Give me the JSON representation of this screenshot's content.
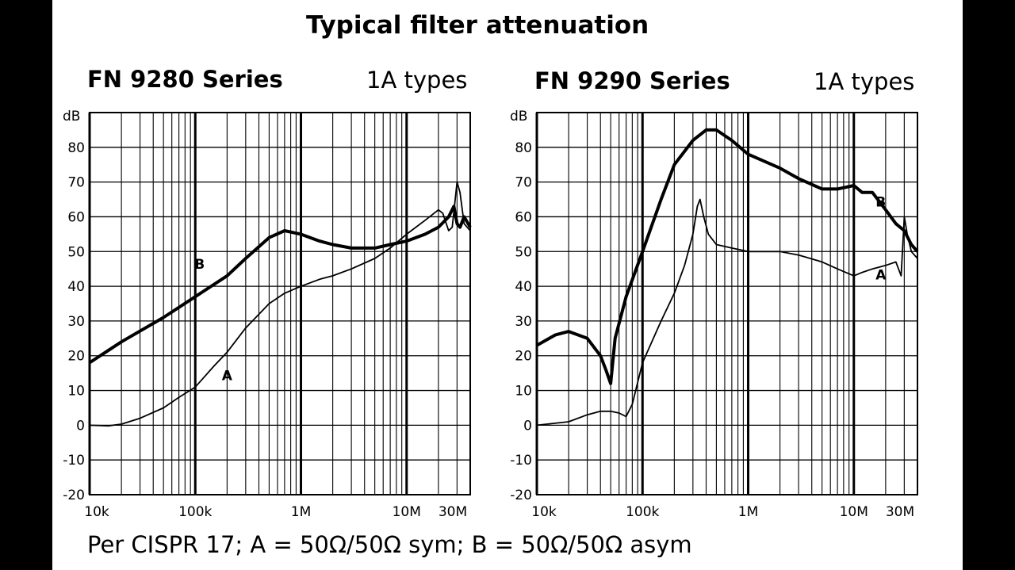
{
  "page": {
    "title": "Typical filter attenuation",
    "footnote": "Per CISPR 17; A = 50Ω/50Ω sym; B = 50Ω/50Ω asym"
  },
  "colors": {
    "background": "#000000",
    "panel": "#ffffff",
    "ink": "#000000"
  },
  "chart_data": [
    {
      "type": "line",
      "title": "FN 9280 Series",
      "subtitle": "1A types",
      "ylabel": "dB",
      "xlabel": "",
      "x_scale": "log",
      "xlim": [
        10000,
        40000000
      ],
      "ylim": [
        -20,
        90
      ],
      "grid": true,
      "x_ticks": [
        10000,
        100000,
        1000000,
        10000000,
        30000000
      ],
      "x_tick_labels": [
        "10k",
        "100k",
        "1M",
        "10M",
        "30M"
      ],
      "y_ticks": [
        -20,
        -10,
        0,
        10,
        20,
        30,
        40,
        50,
        60,
        70,
        80
      ],
      "y_tick_labels": [
        "-20",
        "-10",
        "0",
        "10",
        "20",
        "30",
        "40",
        "50",
        "60",
        "70",
        "80"
      ],
      "series": [
        {
          "name": "A",
          "label_point": [
            200000,
            13
          ],
          "points": [
            [
              10000,
              0
            ],
            [
              15000,
              -0.2
            ],
            [
              20000,
              0.3
            ],
            [
              30000,
              2
            ],
            [
              50000,
              5
            ],
            [
              70000,
              8
            ],
            [
              100000,
              11
            ],
            [
              150000,
              17
            ],
            [
              200000,
              21
            ],
            [
              300000,
              28
            ],
            [
              500000,
              35
            ],
            [
              700000,
              38
            ],
            [
              1000000,
              40
            ],
            [
              1500000,
              42
            ],
            [
              2000000,
              43
            ],
            [
              3000000,
              45
            ],
            [
              5000000,
              48
            ],
            [
              7000000,
              51
            ],
            [
              10000000,
              55
            ],
            [
              15000000,
              59
            ],
            [
              20000000,
              62
            ],
            [
              22000000,
              61
            ],
            [
              25000000,
              56
            ],
            [
              27000000,
              57
            ],
            [
              30000000,
              70
            ],
            [
              32000000,
              67
            ],
            [
              35000000,
              58
            ],
            [
              40000000,
              56
            ]
          ]
        },
        {
          "name": "B",
          "label_point": [
            110000,
            45
          ],
          "points": [
            [
              10000,
              18
            ],
            [
              20000,
              24
            ],
            [
              50000,
              31
            ],
            [
              100000,
              37
            ],
            [
              200000,
              43
            ],
            [
              300000,
              48
            ],
            [
              500000,
              54
            ],
            [
              700000,
              56
            ],
            [
              1000000,
              55
            ],
            [
              1500000,
              53
            ],
            [
              2000000,
              52
            ],
            [
              3000000,
              51
            ],
            [
              5000000,
              51
            ],
            [
              7000000,
              52
            ],
            [
              10000000,
              53
            ],
            [
              15000000,
              55
            ],
            [
              20000000,
              57
            ],
            [
              25000000,
              60
            ],
            [
              28000000,
              63
            ],
            [
              30000000,
              58
            ],
            [
              32000000,
              57
            ],
            [
              35000000,
              60
            ],
            [
              40000000,
              57
            ]
          ]
        }
      ]
    },
    {
      "type": "line",
      "title": "FN 9290 Series",
      "subtitle": "1A types",
      "ylabel": "dB",
      "xlabel": "",
      "x_scale": "log",
      "xlim": [
        10000,
        40000000
      ],
      "ylim": [
        -20,
        90
      ],
      "grid": true,
      "x_ticks": [
        10000,
        100000,
        1000000,
        10000000,
        30000000
      ],
      "x_tick_labels": [
        "10k",
        "100k",
        "1M",
        "10M",
        "30M"
      ],
      "y_ticks": [
        -20,
        -10,
        0,
        10,
        20,
        30,
        40,
        50,
        60,
        70,
        80
      ],
      "y_tick_labels": [
        "-20",
        "-10",
        "0",
        "10",
        "20",
        "30",
        "40",
        "50",
        "60",
        "70",
        "80"
      ],
      "series": [
        {
          "name": "A",
          "label_point": [
            18000000,
            42
          ],
          "points": [
            [
              10000,
              0
            ],
            [
              20000,
              1
            ],
            [
              30000,
              3
            ],
            [
              40000,
              4
            ],
            [
              50000,
              4
            ],
            [
              60000,
              3.5
            ],
            [
              70000,
              2.5
            ],
            [
              80000,
              6
            ],
            [
              100000,
              18
            ],
            [
              150000,
              30
            ],
            [
              200000,
              38
            ],
            [
              250000,
              46
            ],
            [
              300000,
              55
            ],
            [
              330000,
              63
            ],
            [
              350000,
              65
            ],
            [
              380000,
              60
            ],
            [
              420000,
              55
            ],
            [
              500000,
              52
            ],
            [
              700000,
              51
            ],
            [
              1000000,
              50
            ],
            [
              2000000,
              50
            ],
            [
              3000000,
              49
            ],
            [
              5000000,
              47
            ],
            [
              7000000,
              45
            ],
            [
              10000000,
              43
            ],
            [
              12000000,
              44
            ],
            [
              15000000,
              45
            ],
            [
              20000000,
              46
            ],
            [
              25000000,
              47
            ],
            [
              28000000,
              43
            ],
            [
              30000000,
              60
            ],
            [
              32000000,
              55
            ],
            [
              35000000,
              50
            ],
            [
              40000000,
              48
            ]
          ]
        },
        {
          "name": "B",
          "label_point": [
            18000000,
            63
          ],
          "points": [
            [
              10000,
              23
            ],
            [
              15000,
              26
            ],
            [
              20000,
              27
            ],
            [
              30000,
              25
            ],
            [
              40000,
              20
            ],
            [
              45000,
              16
            ],
            [
              50000,
              12
            ],
            [
              55000,
              25
            ],
            [
              70000,
              37
            ],
            [
              100000,
              50
            ],
            [
              150000,
              65
            ],
            [
              200000,
              75
            ],
            [
              300000,
              82
            ],
            [
              400000,
              85
            ],
            [
              500000,
              85
            ],
            [
              700000,
              82
            ],
            [
              1000000,
              78
            ],
            [
              2000000,
              74
            ],
            [
              3000000,
              71
            ],
            [
              5000000,
              68
            ],
            [
              7000000,
              68
            ],
            [
              10000000,
              69
            ],
            [
              12000000,
              67
            ],
            [
              15000000,
              67
            ],
            [
              20000000,
              62
            ],
            [
              25000000,
              58
            ],
            [
              30000000,
              56
            ],
            [
              35000000,
              52
            ],
            [
              40000000,
              50
            ]
          ]
        }
      ]
    }
  ]
}
